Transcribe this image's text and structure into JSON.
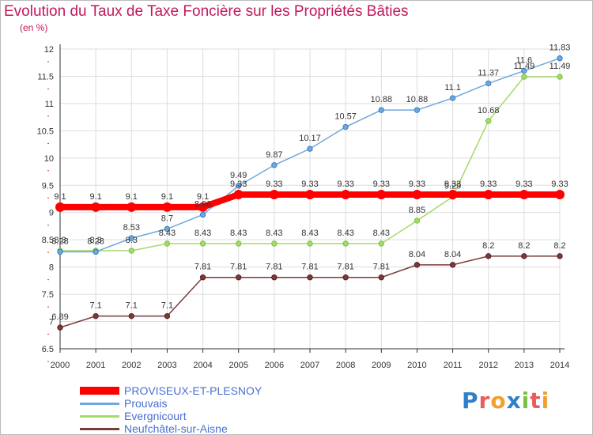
{
  "header": {
    "title": "Evolution du Taux de Taxe Foncière sur les Propriétés Bâties",
    "unit": "(en %)"
  },
  "logo": {
    "text": "Proxiti",
    "letters": [
      "P",
      "r",
      "o",
      "x",
      "i",
      "t",
      "i"
    ],
    "colors": [
      "#2f80c8",
      "#e85d5d",
      "#f0a030",
      "#2f80c8",
      "#7ac143",
      "#e85d5d",
      "#f0a030"
    ]
  },
  "chart_data": {
    "type": "line",
    "title": "Evolution du Taux de Taxe Foncière sur les Propriétés Bâties",
    "ylabel": "(en %)",
    "xlabel": "",
    "ylim": [
      6.5,
      12
    ],
    "yticks": [
      "6.5",
      "7",
      "7.5",
      "8",
      "8.5",
      "9",
      "9.5",
      "10",
      "10.5",
      "11",
      "11.5",
      "12"
    ],
    "categories": [
      "2000",
      "2001",
      "2002",
      "2003",
      "2004",
      "2005",
      "2006",
      "2007",
      "2008",
      "2009",
      "2010",
      "2011",
      "2012",
      "2013",
      "2014"
    ],
    "grid": true,
    "series": [
      {
        "name": "PROVISEUX-ET-PLESNOY",
        "color": "#ff0000",
        "bold": true,
        "values": [
          9.1,
          9.1,
          9.1,
          9.1,
          9.1,
          9.33,
          9.33,
          9.33,
          9.33,
          9.33,
          9.33,
          9.33,
          9.33,
          9.33,
          9.33
        ],
        "labels": [
          "9.1",
          "9.1",
          "9.1",
          "9.1",
          "9.1",
          "9.33",
          "9.33",
          "9.33",
          "9.33",
          "9.33",
          "9.33",
          "9.33",
          "9.33",
          "9.33",
          "9.33"
        ]
      },
      {
        "name": "Prouvais",
        "color": "#6fa8dc",
        "marker": "#3a7dc0",
        "values": [
          8.28,
          8.28,
          8.53,
          8.7,
          8.96,
          9.49,
          9.87,
          10.17,
          10.57,
          10.88,
          10.88,
          11.1,
          11.37,
          11.6,
          11.83
        ],
        "labels": [
          "8.28",
          "8.28",
          "8.53",
          "8.7",
          "8.96",
          "9.49",
          "9.87",
          "10.17",
          "10.57",
          "10.88",
          "10.88",
          "11.1",
          "11.37",
          "11.6",
          "11.83"
        ]
      },
      {
        "name": "Evergnicourt",
        "color": "#a6d96a",
        "marker": "#7ac143",
        "values": [
          8.3,
          8.3,
          8.3,
          8.43,
          8.43,
          8.43,
          8.43,
          8.43,
          8.43,
          8.43,
          8.85,
          9.29,
          10.68,
          11.49,
          11.49
        ],
        "labels": [
          "8.3",
          "8.3",
          "8.3",
          "8.43",
          "8.43",
          "8.43",
          "8.43",
          "8.43",
          "8.43",
          "8.43",
          "8.85",
          "9.29",
          "10.68",
          "11.49",
          "11.49"
        ]
      },
      {
        "name": "Neufchâtel-sur-Aisne",
        "color": "#7b3a3a",
        "marker": "#5a1f1f",
        "values": [
          6.89,
          7.1,
          7.1,
          7.1,
          7.81,
          7.81,
          7.81,
          7.81,
          7.81,
          7.81,
          8.04,
          8.04,
          8.2,
          8.2,
          8.2
        ],
        "labels": [
          "6.89",
          "7.1",
          "7.1",
          "7.1",
          "7.81",
          "7.81",
          "7.81",
          "7.81",
          "7.81",
          "7.81",
          "8.04",
          "8.04",
          "8.2",
          "8.2",
          "8.2"
        ]
      }
    ]
  }
}
